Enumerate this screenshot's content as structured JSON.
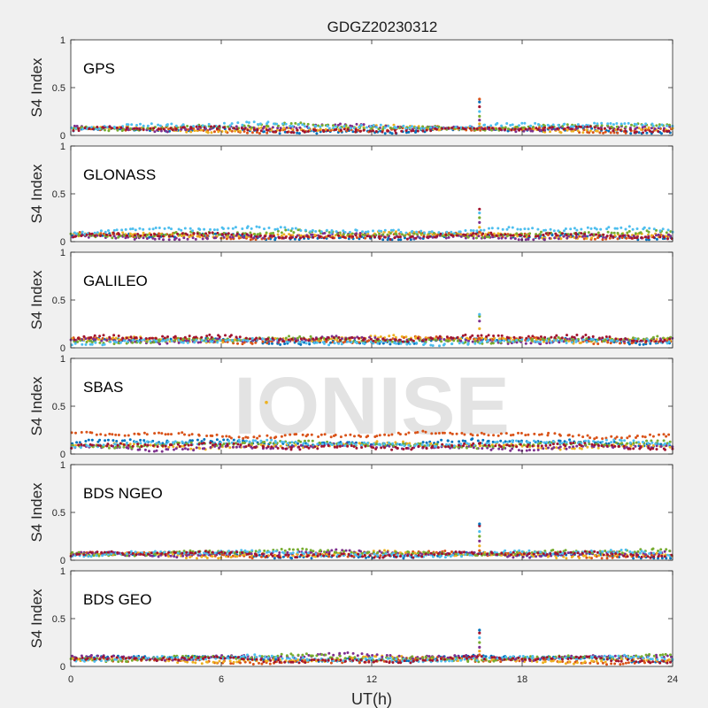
{
  "figure": {
    "title": "GDGZ20230312",
    "xlabel": "UT(h)",
    "watermark": "IONISE",
    "background": "#f0f0f0",
    "axes_bg": "#ffffff"
  },
  "chart_data": {
    "type": "scatter",
    "title": "GDGZ20230312",
    "xlabel": "UT(h)",
    "xlim": [
      0,
      24
    ],
    "xticks": [
      0,
      6,
      12,
      18,
      24
    ],
    "ylim": [
      0,
      1
    ],
    "yticks": [
      0,
      0.5,
      1
    ],
    "grid": false,
    "legend": "none",
    "series_colors": [
      "#0072bd",
      "#d95319",
      "#edb120",
      "#7e2f8e",
      "#77ac30",
      "#4dbeee",
      "#a2142f"
    ],
    "panels": [
      {
        "name": "GPS",
        "ylabel": "S4 Index",
        "baseline_levels": [
          0.05,
          0.06,
          0.07,
          0.08,
          0.09,
          0.1,
          0.06
        ],
        "spike": {
          "x": 16.3,
          "values": [
            0.08,
            0.12,
            0.16,
            0.2,
            0.25,
            0.3,
            0.35,
            0.38
          ]
        }
      },
      {
        "name": "GLONASS",
        "ylabel": "S4 Index",
        "baseline_levels": [
          0.05,
          0.06,
          0.07,
          0.05,
          0.08,
          0.12,
          0.06
        ],
        "spike": {
          "x": 16.3,
          "values": [
            0.1,
            0.15,
            0.2,
            0.25,
            0.3,
            0.34
          ]
        }
      },
      {
        "name": "GALILEO",
        "ylabel": "S4 Index",
        "baseline_levels": [
          0.07,
          0.08,
          0.09,
          0.08,
          0.08,
          0.06,
          0.1
        ],
        "spike": {
          "x": 16.3,
          "values": [
            0.1,
            0.2,
            0.28,
            0.33,
            0.35
          ]
        }
      },
      {
        "name": "SBAS",
        "ylabel": "S4 Index",
        "baseline_levels": [
          0.12,
          0.2,
          0.09,
          0.07,
          0.1,
          0.11,
          0.08
        ],
        "outlier": {
          "x": 7.8,
          "y": 0.54
        }
      },
      {
        "name": "BDS NGEO",
        "ylabel": "S4 Index",
        "baseline_levels": [
          0.05,
          0.06,
          0.06,
          0.07,
          0.08,
          0.07,
          0.06
        ],
        "spike": {
          "x": 16.3,
          "values": [
            0.1,
            0.15,
            0.2,
            0.25,
            0.3,
            0.36,
            0.38
          ]
        }
      },
      {
        "name": "BDS GEO",
        "ylabel": "S4 Index",
        "baseline_levels": [
          0.08,
          0.06,
          0.07,
          0.1,
          0.09,
          0.08,
          0.07
        ],
        "spike": {
          "x": 16.3,
          "values": [
            0.12,
            0.16,
            0.2,
            0.25,
            0.3,
            0.35,
            0.38
          ]
        }
      }
    ]
  }
}
